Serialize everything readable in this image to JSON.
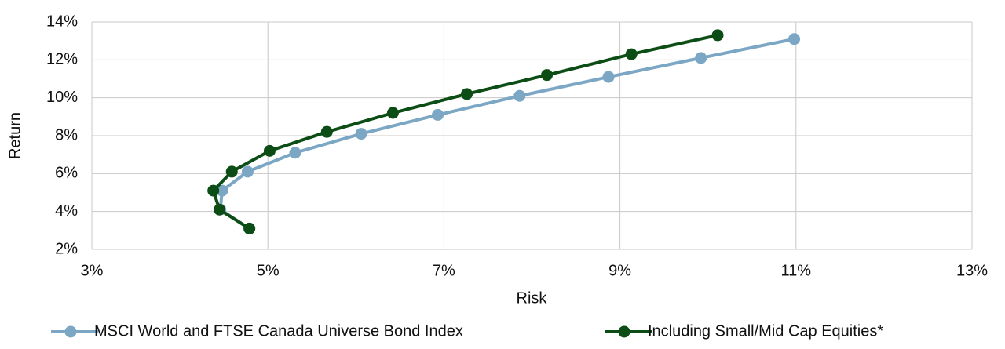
{
  "chart_data": {
    "type": "line",
    "x_label": "Risk",
    "y_label": "Return",
    "xlim": [
      3,
      13
    ],
    "ylim": [
      2,
      14
    ],
    "xticks": [
      {
        "value": 3,
        "label": "3%"
      },
      {
        "value": 5,
        "label": "5%"
      },
      {
        "value": 7,
        "label": "7%"
      },
      {
        "value": 9,
        "label": "9%"
      },
      {
        "value": 11,
        "label": "11%"
      },
      {
        "value": 13,
        "label": "13%"
      }
    ],
    "yticks": [
      {
        "value": 2,
        "label": "2%"
      },
      {
        "value": 4,
        "label": "4%"
      },
      {
        "value": 6,
        "label": "6%"
      },
      {
        "value": 8,
        "label": "8%"
      },
      {
        "value": 10,
        "label": "10%"
      },
      {
        "value": 12,
        "label": "12%"
      },
      {
        "value": 14,
        "label": "14%"
      }
    ],
    "grid": true,
    "legend": "bottom",
    "series": [
      {
        "name": "MSCI World and FTSE Canada Universe Bond Index",
        "color": "#7ba7c4",
        "x": [
          4.79,
          4.46,
          4.48,
          4.77,
          5.31,
          6.06,
          6.93,
          7.86,
          8.87,
          9.92,
          10.98
        ],
        "values": [
          3.1,
          4.1,
          5.1,
          6.1,
          7.1,
          8.1,
          9.1,
          10.1,
          11.1,
          12.1,
          13.1
        ]
      },
      {
        "name": "Including Small/Mid Cap Equities*",
        "color": "#0b4d14",
        "x": [
          4.79,
          4.45,
          4.38,
          4.59,
          5.02,
          5.67,
          6.42,
          7.26,
          8.17,
          9.13,
          10.11
        ],
        "values": [
          3.1,
          4.1,
          5.1,
          6.1,
          7.2,
          8.2,
          9.2,
          10.2,
          11.2,
          12.3,
          13.3
        ]
      }
    ]
  }
}
